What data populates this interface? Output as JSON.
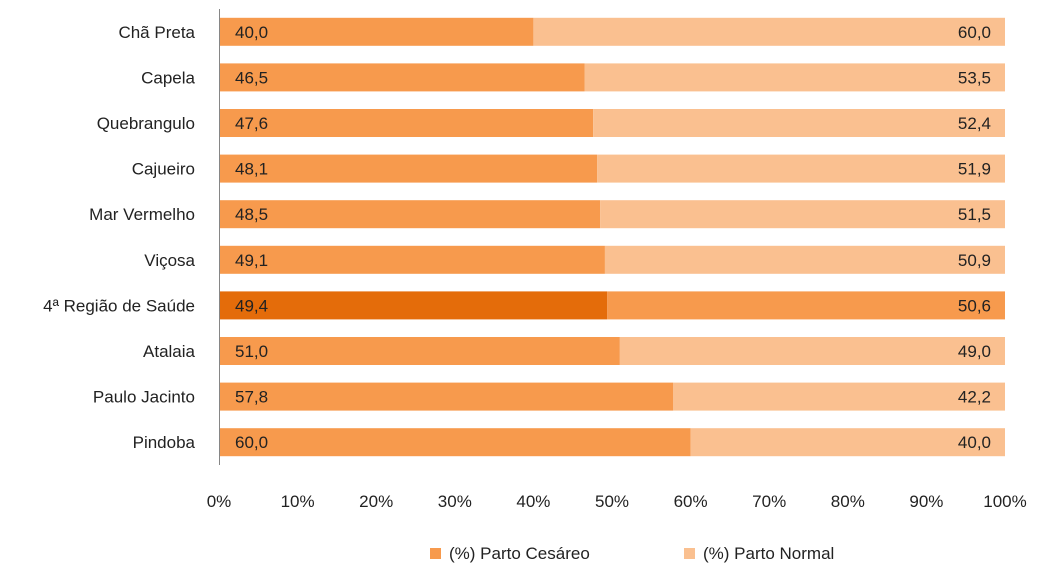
{
  "chart_data": {
    "type": "bar",
    "orientation": "horizontal",
    "stacked": "percent",
    "categories": [
      "Chã Preta",
      "Capela",
      "Quebrangulo",
      "Cajueiro",
      "Mar Vermelho",
      "Viçosa",
      "4ª Região de Saúde",
      "Atalaia",
      "Paulo Jacinto",
      "Pindoba"
    ],
    "series": [
      {
        "name": "(%) Parto Cesáreo",
        "values": [
          40.0,
          46.5,
          47.6,
          48.1,
          48.5,
          49.1,
          49.4,
          51.0,
          57.8,
          60.0
        ],
        "labels": [
          "40,0",
          "46,5",
          "47,6",
          "48,1",
          "48,5",
          "49,1",
          "49,4",
          "51,0",
          "57,8",
          "60,0"
        ],
        "color": "#F79A4D"
      },
      {
        "name": "(%) Parto Normal",
        "values": [
          60.0,
          53.5,
          52.4,
          51.9,
          51.5,
          50.9,
          50.6,
          49.0,
          42.2,
          40.0
        ],
        "labels": [
          "60,0",
          "53,5",
          "52,4",
          "51,9",
          "51,5",
          "50,9",
          "50,6",
          "49,0",
          "42,2",
          "40,0"
        ],
        "color": "#FAC090"
      }
    ],
    "highlight": {
      "category": "4ª Região de Saúde",
      "colors": [
        "#E46C0A",
        "#F79A4D"
      ]
    },
    "xlim": [
      0,
      100
    ],
    "xticks": [
      "0%",
      "10%",
      "20%",
      "30%",
      "40%",
      "50%",
      "60%",
      "70%",
      "80%",
      "90%",
      "100%"
    ],
    "grid": false,
    "legend_position": "bottom"
  }
}
